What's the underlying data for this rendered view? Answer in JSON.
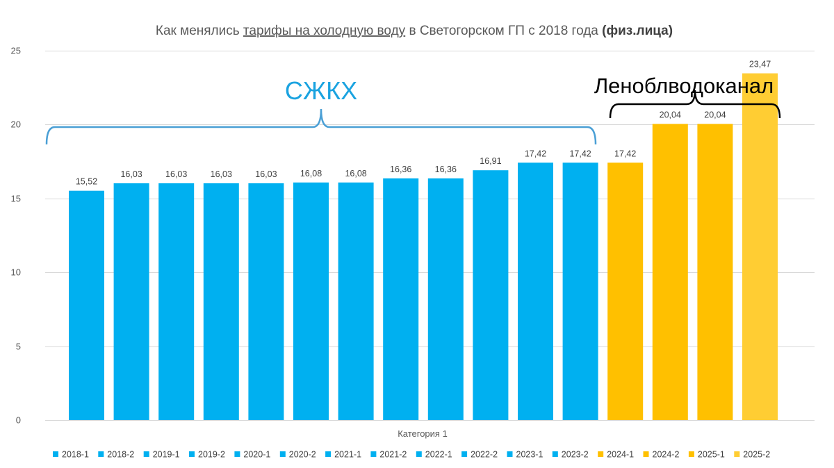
{
  "chart_data": {
    "type": "bar",
    "title": {
      "part1": "Как менялись ",
      "part2_underlined": "тарифы на холодную воду",
      "part3": " в Светогорском ГП с 2018 года ",
      "part4_bold": "(физ.лица)"
    },
    "xlabel": "Категория 1",
    "ylabel": "",
    "ylim": [
      0,
      25
    ],
    "yticks": [
      "0",
      "5",
      "10",
      "15",
      "20",
      "25"
    ],
    "grid": true,
    "legend_position": "bottom",
    "series": [
      {
        "name": "2018-1",
        "value": 15.52,
        "label": "15,52",
        "color": "#00b0f0"
      },
      {
        "name": "2018-2",
        "value": 16.03,
        "label": "16,03",
        "color": "#00b0f0"
      },
      {
        "name": "2019-1",
        "value": 16.03,
        "label": "16,03",
        "color": "#00b0f0"
      },
      {
        "name": "2019-2",
        "value": 16.03,
        "label": "16,03",
        "color": "#00b0f0"
      },
      {
        "name": "2020-1",
        "value": 16.03,
        "label": "16,03",
        "color": "#00b0f0"
      },
      {
        "name": "2020-2",
        "value": 16.08,
        "label": "16,08",
        "color": "#00b0f0"
      },
      {
        "name": "2021-1",
        "value": 16.08,
        "label": "16,08",
        "color": "#00b0f0"
      },
      {
        "name": "2021-2",
        "value": 16.36,
        "label": "16,36",
        "color": "#00b0f0"
      },
      {
        "name": "2022-1",
        "value": 16.36,
        "label": "16,36",
        "color": "#00b0f0"
      },
      {
        "name": "2022-2",
        "value": 16.91,
        "label": "16,91",
        "color": "#00b0f0"
      },
      {
        "name": "2023-1",
        "value": 17.42,
        "label": "17,42",
        "color": "#00b0f0"
      },
      {
        "name": "2023-2",
        "value": 17.42,
        "label": "17,42",
        "color": "#00b0f0"
      },
      {
        "name": "2024-1",
        "value": 17.42,
        "label": "17,42",
        "color": "#ffc000"
      },
      {
        "name": "2024-2",
        "value": 20.04,
        "label": "20,04",
        "color": "#ffc000"
      },
      {
        "name": "2025-1",
        "value": 20.04,
        "label": "20,04",
        "color": "#ffc000"
      },
      {
        "name": "2025-2",
        "value": 23.47,
        "label": "23,47",
        "color": "#ffcd33"
      }
    ],
    "annotations": [
      {
        "text": "СЖКХ",
        "from_series": 0,
        "to_series": 11,
        "color": "#1aa3e0"
      },
      {
        "text": "Леноблводоканал",
        "from_series": 12,
        "to_series": 15,
        "color": "#000000"
      }
    ]
  }
}
